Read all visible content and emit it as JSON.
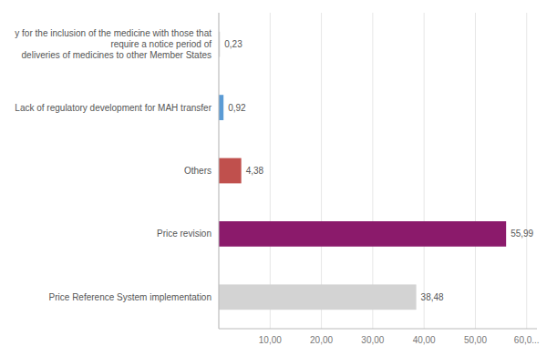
{
  "chart_data": {
    "type": "bar",
    "orientation": "horizontal",
    "categories": [
      "y for the inclusion of the medicine with those that require a notice period of\ndeliveries of medicines to other Member States",
      "Lack of regulatory development for MAH transfer",
      "Others",
      "Price revision",
      "Price Reference System implementation"
    ],
    "values": [
      0.23,
      0.92,
      4.38,
      55.99,
      38.48
    ],
    "value_labels": [
      "0,23",
      "0,92",
      "4,38",
      "55,99",
      "38,48"
    ],
    "data_labels": true,
    "colors": [
      "#d3d3d3",
      "#5b9bd5",
      "#c0504d",
      "#8b1a6b",
      "#d3d3d3"
    ],
    "xlim": [
      0,
      62
    ],
    "xticks": [
      {
        "value": 0,
        "label": null
      },
      {
        "value": 10,
        "label": "10,00"
      },
      {
        "value": 20,
        "label": "20,00"
      },
      {
        "value": 30,
        "label": "30,00"
      },
      {
        "value": 40,
        "label": "40,00"
      },
      {
        "value": 50,
        "label": "50,00"
      },
      {
        "value": 60,
        "label": "60,0..."
      }
    ],
    "grid": true
  }
}
